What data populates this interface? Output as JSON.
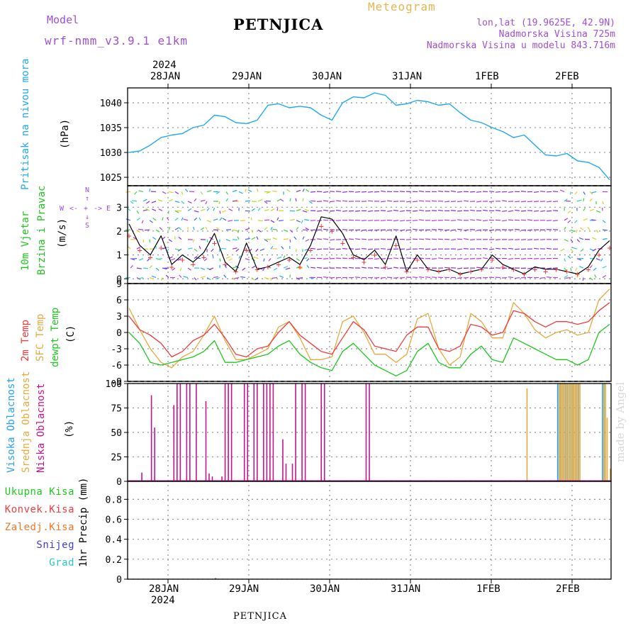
{
  "header": {
    "model_label": "Model",
    "model_name": "wrf-nmm_v3.9.1 e1km",
    "station": "PETNJICA",
    "product": "Meteogram",
    "lonlat": "lon,lat (19.9625E, 42.9N)",
    "altitude": "Nadmorska Visina 725m",
    "model_altitude": "Nadmorska Visina u modelu 843.716m",
    "footer_station": "PETNJICA",
    "credit": "made by Angel"
  },
  "colors": {
    "pressure": "#1eaaf0",
    "t2m": "#f03c3c",
    "sfc": "#e6aa3c",
    "dewpt": "#1ec81e",
    "high_cloud": "#28a0f0",
    "mid_cloud": "#e6aa3c",
    "low_cloud": "#c8148c",
    "purple": "#a050d2",
    "total_precip": "#1ec81e",
    "conv_precip": "#f03c3c",
    "frz_precip": "#f07828",
    "snow": "#3c3cdc",
    "graupel": "#28c8c8"
  },
  "time_axis": {
    "year": "2024",
    "day_labels": [
      "28JAN",
      "29JAN",
      "30JAN",
      "31JAN",
      "1FEB",
      "2FEB"
    ]
  },
  "chart_data": [
    {
      "type": "line",
      "panel": "pressure",
      "ylabel_side": "Pritisak na nivou mora",
      "unit": "(hPa)",
      "yticks": [
        1025,
        1030,
        1035,
        1040
      ],
      "ylim": [
        1023.3,
        1043
      ],
      "grid": true,
      "series": [
        {
          "values": [
            1030.0,
            1030.3,
            1031.5,
            1033.0,
            1033.5,
            1033.8,
            1035.0,
            1035.5,
            1037.5,
            1037.2,
            1036.0,
            1035.8,
            1036.5,
            1039.5,
            1039.8,
            1039.0,
            1039.3,
            1039.0,
            1037.5,
            1036.5,
            1040.0,
            1041.2,
            1041.0,
            1042.0,
            1041.5,
            1039.5,
            1039.8,
            1040.5,
            1040.2,
            1039.5,
            1039.8,
            1038.0,
            1036.5,
            1036.0,
            1035.0,
            1034.2,
            1033.0,
            1033.5,
            1031.5,
            1029.5,
            1029.3,
            1029.8,
            1028.3,
            1028.0,
            1027.0,
            1024.5
          ]
        }
      ]
    },
    {
      "type": "line",
      "panel": "wind",
      "ylabel_side": [
        "10m Vjetar",
        "Brzina i Pravac"
      ],
      "unit": "(m/s)",
      "compass": [
        "N",
        "W",
        "E",
        "S"
      ],
      "yticks": [
        0,
        1,
        2,
        3
      ],
      "ylim": [
        -0.2,
        3.9
      ],
      "grid": true,
      "series": [
        {
          "values": [
            2.3,
            1.4,
            1.0,
            1.8,
            0.6,
            1.0,
            0.7,
            1.1,
            1.9,
            0.7,
            0.3,
            1.5,
            0.4,
            0.5,
            0.7,
            0.9,
            0.6,
            1.4,
            2.6,
            2.5,
            1.9,
            1.0,
            0.8,
            1.2,
            0.6,
            1.8,
            0.3,
            1.0,
            0.4,
            0.3,
            0.4,
            0.2,
            0.3,
            0.4,
            1.0,
            0.6,
            0.4,
            0.2,
            0.5,
            0.4,
            0.4,
            0.3,
            0.2,
            0.5,
            1.2,
            1.6
          ]
        },
        {
          "values": [
            1.8,
            1.2,
            0.9,
            1.3,
            0.5,
            0.8,
            0.6,
            0.9,
            1.5,
            0.6,
            0.3,
            1.2,
            0.4,
            0.5,
            0.6,
            0.8,
            0.5,
            1.2,
            2.2,
            2.0,
            1.5,
            0.9,
            0.7,
            1.0,
            0.5,
            1.4,
            0.3,
            0.8,
            0.4,
            0.3,
            0.4,
            0.2,
            0.3,
            0.4,
            0.8,
            0.5,
            0.4,
            0.2,
            0.4,
            0.3,
            0.4,
            0.3,
            0.2,
            0.4,
            1.0,
            1.3
          ]
        }
      ]
    },
    {
      "type": "line",
      "panel": "temperature",
      "ylabel_side": [
        "2m Temp",
        "SFC Temp",
        "dewpt Temp"
      ],
      "unit": "(C)",
      "yticks": [
        -9,
        -6,
        -3,
        0,
        3,
        6,
        9
      ],
      "ylim": [
        -9,
        9
      ],
      "grid": true,
      "series": [
        {
          "name": "2m Temp",
          "values": [
            3.0,
            0.5,
            -0.5,
            -2.0,
            -4.5,
            -3.5,
            -1.5,
            -0.5,
            1.5,
            -1.0,
            -4.0,
            -4.5,
            -3.0,
            -2.5,
            0.0,
            2.0,
            -0.5,
            -2.0,
            -3.5,
            -4.0,
            -1.0,
            2.0,
            0.5,
            -2.5,
            -3.0,
            -3.5,
            -0.5,
            1.0,
            1.0,
            -3.0,
            -3.5,
            -2.5,
            1.5,
            1.0,
            -0.5,
            0.0,
            4.0,
            3.5,
            2.0,
            1.0,
            2.0,
            2.0,
            1.5,
            2.0,
            4.0,
            5.5
          ]
        },
        {
          "name": "SFC Temp",
          "values": [
            4.5,
            0.5,
            -3.0,
            -5.5,
            -6.5,
            -4.5,
            -3.5,
            -0.5,
            3.0,
            -1.5,
            -5.0,
            -5.0,
            -4.0,
            -3.0,
            1.0,
            2.0,
            -1.0,
            -5.0,
            -5.0,
            -4.5,
            2.0,
            3.0,
            0.0,
            -4.0,
            -4.0,
            -5.5,
            -4.0,
            2.5,
            3.5,
            -3.0,
            -6.0,
            -4.5,
            3.5,
            2.0,
            -1.0,
            -1.0,
            5.5,
            3.5,
            0.5,
            -1.0,
            0.0,
            0.5,
            -0.5,
            0.0,
            6.0,
            8.0
          ]
        },
        {
          "name": "dewpt Temp",
          "values": [
            0.0,
            -2.0,
            -5.5,
            -6.0,
            -5.5,
            -5.0,
            -4.5,
            -3.5,
            -1.5,
            -5.5,
            -5.5,
            -5.0,
            -4.5,
            -4.0,
            -2.5,
            -1.5,
            -4.0,
            -5.5,
            -6.5,
            -7.0,
            -3.5,
            -2.0,
            -4.0,
            -6.0,
            -7.0,
            -8.0,
            -7.0,
            -3.5,
            -2.0,
            -5.5,
            -6.5,
            -6.5,
            -4.0,
            -2.5,
            -5.0,
            -5.5,
            -1.0,
            -2.0,
            -3.0,
            -4.0,
            -5.0,
            -5.0,
            -6.0,
            -5.0,
            0.0,
            1.5
          ]
        }
      ]
    },
    {
      "type": "bar",
      "panel": "cloud",
      "ylabel_side": [
        "Visoka Oblacnost",
        "Srednja Oblacnost",
        "Niska Oblacnost"
      ],
      "unit": "(%)",
      "yticks": [
        0,
        25,
        50,
        75,
        100
      ],
      "ylim": [
        0,
        100
      ],
      "grid": true,
      "series": [
        {
          "name": "Visoka Oblacnost",
          "x": [
            134.0,
            134.5,
            135.0,
            135.5,
            136.0,
            136.5,
            137.0,
            137.5,
            138.0,
            138.5,
            139.0,
            139.5,
            140.0,
            140.5,
            148.0,
            148.5
          ],
          "values": [
            100,
            100,
            100,
            100,
            100,
            100,
            100,
            100,
            100,
            100,
            100,
            100,
            100,
            100,
            100,
            100
          ]
        },
        {
          "name": "Srednja Oblacnost",
          "x": [
            124.0,
            134.0,
            134.5,
            135.0,
            135.5,
            136.0,
            136.5,
            137.0,
            137.5,
            138.0,
            138.5,
            139.0,
            139.5,
            140.0,
            140.5,
            148.0,
            148.5,
            149.0,
            150.0
          ],
          "values": [
            95,
            100,
            100,
            100,
            100,
            100,
            100,
            100,
            100,
            100,
            100,
            100,
            100,
            100,
            100,
            100,
            100,
            65,
            13
          ]
        },
        {
          "name": "Niska Oblacnost",
          "x": [
            4,
            7,
            8,
            14,
            15,
            16,
            18,
            19,
            21,
            24,
            25,
            26,
            29,
            30,
            31,
            32,
            36,
            37,
            39,
            40,
            42,
            43,
            44,
            45,
            48,
            49,
            51,
            52,
            54,
            55,
            60,
            61,
            74,
            75
          ],
          "values": [
            9,
            88,
            55,
            78,
            100,
            100,
            100,
            100,
            100,
            82,
            8,
            5,
            5,
            100,
            100,
            100,
            100,
            100,
            100,
            100,
            100,
            100,
            100,
            100,
            43,
            18,
            18,
            100,
            100,
            100,
            100,
            100,
            100,
            100
          ]
        }
      ]
    },
    {
      "type": "bar",
      "panel": "precip",
      "ylabel_side": [
        "Ukupna Kisa",
        "Konvek.Kisa",
        "Zaledj.Kisa",
        "Snijeg",
        "Grad"
      ],
      "unit": "1hr Precip (mm)",
      "yticks": [
        0,
        0.2,
        0.4,
        0.6,
        0.8
      ],
      "ylim": [
        0,
        0.98
      ],
      "grid": true,
      "series": [
        {
          "name": "Ukupna Kisa",
          "x": [
            27
          ],
          "values": [
            0.01
          ]
        }
      ]
    }
  ]
}
